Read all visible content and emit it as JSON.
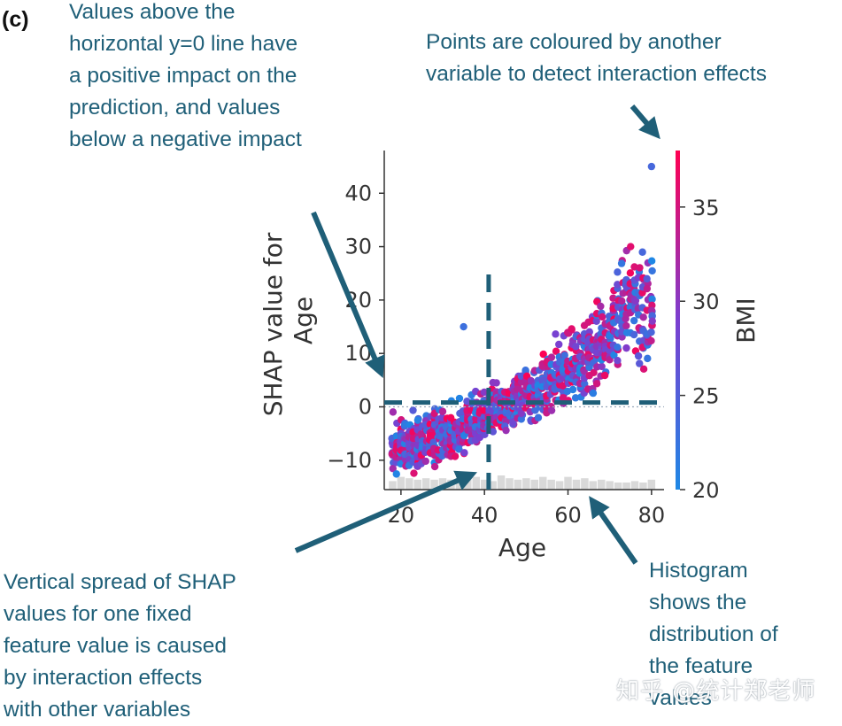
{
  "panel_label": "(c)",
  "annotations": {
    "zero_line": "Values above the\nhorizontal y=0 line have\na positive impact on the\nprediction, and values\nbelow a negative impact",
    "coloring": "Points are coloured by another\nvariable to detect interaction effects",
    "vertical_spread": "Vertical spread of SHAP\nvalues for one fixed\nfeature value is caused\nby interaction effects\nwith other variables",
    "histogram": "Histogram\nshows the\ndistribution of\nthe feature\nvalues"
  },
  "watermark": "知乎 @统计郑老师",
  "colors": {
    "annotation": "#1f5f78",
    "colormap_low": "#1e88e5",
    "colormap_mid": "#7b3fd0",
    "colormap_high": "#ff0052",
    "histogram": "#d9d9d9"
  },
  "chart_data": {
    "type": "scatter",
    "xlabel": "Age",
    "ylabel": "SHAP value for\nAge",
    "colorbar_label": "BMI",
    "xlim": [
      16,
      83
    ],
    "ylim": [
      -15.5,
      48
    ],
    "xticks": [
      20,
      40,
      60,
      80
    ],
    "yticks": [
      -10,
      0,
      10,
      20,
      30,
      40
    ],
    "ytick_labels": [
      "−10",
      "0",
      "10",
      "20",
      "30",
      "40"
    ],
    "colorbar_range": [
      20,
      38
    ],
    "colorbar_ticks": [
      20,
      25,
      30,
      35
    ],
    "zero_line": 0,
    "dashed_reference_lines": {
      "horizontal_y": 0.8,
      "vertical_x": 41
    },
    "trend": {
      "ages": [
        18,
        20,
        25,
        30,
        35,
        40,
        45,
        50,
        55,
        60,
        65,
        70,
        75,
        80
      ],
      "mean_shap": [
        -7,
        -7,
        -6,
        -5,
        -3.5,
        -1.5,
        0,
        2,
        4,
        7,
        10,
        14,
        20,
        18
      ],
      "spread": [
        3,
        3,
        3,
        3,
        3,
        3,
        3,
        3,
        3.5,
        4,
        4.5,
        5,
        5,
        7
      ]
    },
    "histogram": {
      "age_bins": [
        18,
        20,
        22,
        24,
        26,
        28,
        30,
        32,
        34,
        36,
        38,
        40,
        42,
        44,
        46,
        48,
        50,
        52,
        54,
        56,
        58,
        60,
        62,
        64,
        66,
        68,
        70,
        72,
        74,
        76,
        78,
        80
      ],
      "heights": [
        0.6,
        0.9,
        0.8,
        0.7,
        0.8,
        0.7,
        0.8,
        0.7,
        0.6,
        0.8,
        0.9,
        0.7,
        0.6,
        1.0,
        0.8,
        0.7,
        0.8,
        0.7,
        0.9,
        0.7,
        0.6,
        0.9,
        0.7,
        0.8,
        0.6,
        0.7,
        0.6,
        0.5,
        0.5,
        0.6,
        0.5,
        0.7
      ]
    },
    "notable_points": [
      {
        "age": 80,
        "shap": 45,
        "bmi": 24
      },
      {
        "age": 35,
        "shap": 15,
        "bmi": 23
      },
      {
        "age": 75,
        "shap": 30,
        "bmi": 36
      }
    ]
  }
}
